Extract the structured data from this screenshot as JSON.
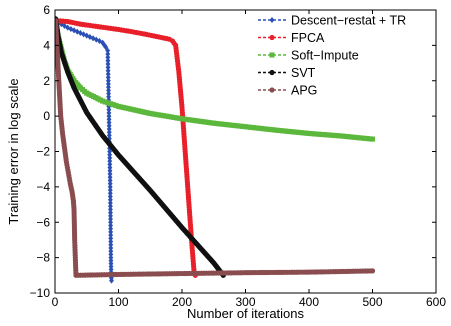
{
  "chart_data": {
    "type": "line",
    "title": "",
    "xlabel": "Number of iterations",
    "ylabel": "Training error in log scale",
    "xlim": [
      0,
      600
    ],
    "ylim": [
      -10,
      6
    ],
    "xticks": [
      0,
      100,
      200,
      300,
      400,
      500,
      600
    ],
    "yticks": [
      -10,
      -8,
      -6,
      -4,
      -2,
      0,
      2,
      4,
      6
    ],
    "grid": false,
    "legend_position": "top-right",
    "series": [
      {
        "name": "Descent−restat + TR",
        "color": "#2a4fb5",
        "marker": "diamond",
        "points": [
          [
            1,
            5.3
          ],
          [
            5,
            5.25
          ],
          [
            10,
            5.2
          ],
          [
            20,
            5.0
          ],
          [
            30,
            4.85
          ],
          [
            40,
            4.7
          ],
          [
            50,
            4.55
          ],
          [
            60,
            4.4
          ],
          [
            70,
            4.25
          ],
          [
            75,
            4.15
          ],
          [
            80,
            3.9
          ],
          [
            83,
            3.7
          ],
          [
            84,
            2.0
          ],
          [
            85,
            0.0
          ],
          [
            86,
            -2.0
          ],
          [
            87,
            -4.0
          ],
          [
            87.5,
            -6.0
          ],
          [
            88,
            -8.0
          ],
          [
            88.5,
            -9.0
          ],
          [
            89,
            -9.3
          ]
        ]
      },
      {
        "name": "FPCA",
        "color": "#e8202a",
        "marker": "circle",
        "points": [
          [
            1,
            5.4
          ],
          [
            20,
            5.35
          ],
          [
            40,
            5.2
          ],
          [
            60,
            5.1
          ],
          [
            80,
            5.0
          ],
          [
            100,
            4.9
          ],
          [
            120,
            4.78
          ],
          [
            140,
            4.65
          ],
          [
            160,
            4.5
          ],
          [
            180,
            4.35
          ],
          [
            185,
            4.25
          ],
          [
            190,
            4.0
          ],
          [
            195,
            2.5
          ],
          [
            200,
            0.5
          ],
          [
            203,
            -1.0
          ],
          [
            207,
            -3.0
          ],
          [
            211,
            -5.0
          ],
          [
            215,
            -7.0
          ],
          [
            219,
            -8.8
          ],
          [
            221,
            -9.0
          ]
        ]
      },
      {
        "name": "Soft−Impute",
        "color": "#5cb83c",
        "marker": "square",
        "points": [
          [
            1,
            5.4
          ],
          [
            5,
            4.5
          ],
          [
            10,
            3.8
          ],
          [
            15,
            3.1
          ],
          [
            20,
            2.6
          ],
          [
            30,
            2.0
          ],
          [
            40,
            1.6
          ],
          [
            50,
            1.3
          ],
          [
            75,
            0.85
          ],
          [
            100,
            0.55
          ],
          [
            150,
            0.15
          ],
          [
            200,
            -0.15
          ],
          [
            250,
            -0.4
          ],
          [
            300,
            -0.6
          ],
          [
            350,
            -0.8
          ],
          [
            400,
            -0.98
          ],
          [
            450,
            -1.12
          ],
          [
            500,
            -1.3
          ]
        ]
      },
      {
        "name": "SVT",
        "color": "#111111",
        "marker": "circle",
        "points": [
          [
            1,
            5.5
          ],
          [
            5,
            4.5
          ],
          [
            10,
            3.6
          ],
          [
            20,
            2.5
          ],
          [
            30,
            1.6
          ],
          [
            50,
            0.2
          ],
          [
            75,
            -1.1
          ],
          [
            100,
            -2.2
          ],
          [
            150,
            -4.2
          ],
          [
            200,
            -6.3
          ],
          [
            250,
            -8.3
          ],
          [
            265,
            -9.0
          ]
        ]
      },
      {
        "name": "APG",
        "color": "#8a4d4f",
        "marker": "circle",
        "points": [
          [
            1,
            5.4
          ],
          [
            3,
            4.0
          ],
          [
            6,
            2.0
          ],
          [
            9,
            0.0
          ],
          [
            12,
            -1.0
          ],
          [
            15,
            -1.8
          ],
          [
            18,
            -2.6
          ],
          [
            21,
            -3.2
          ],
          [
            24,
            -3.8
          ],
          [
            27,
            -4.3
          ],
          [
            29,
            -4.8
          ],
          [
            30,
            -5.3
          ],
          [
            31,
            -7.0
          ],
          [
            32,
            -8.0
          ],
          [
            33,
            -9.0
          ],
          [
            100,
            -8.95
          ],
          [
            200,
            -8.9
          ],
          [
            300,
            -8.85
          ],
          [
            400,
            -8.82
          ],
          [
            500,
            -8.75
          ]
        ]
      }
    ]
  }
}
